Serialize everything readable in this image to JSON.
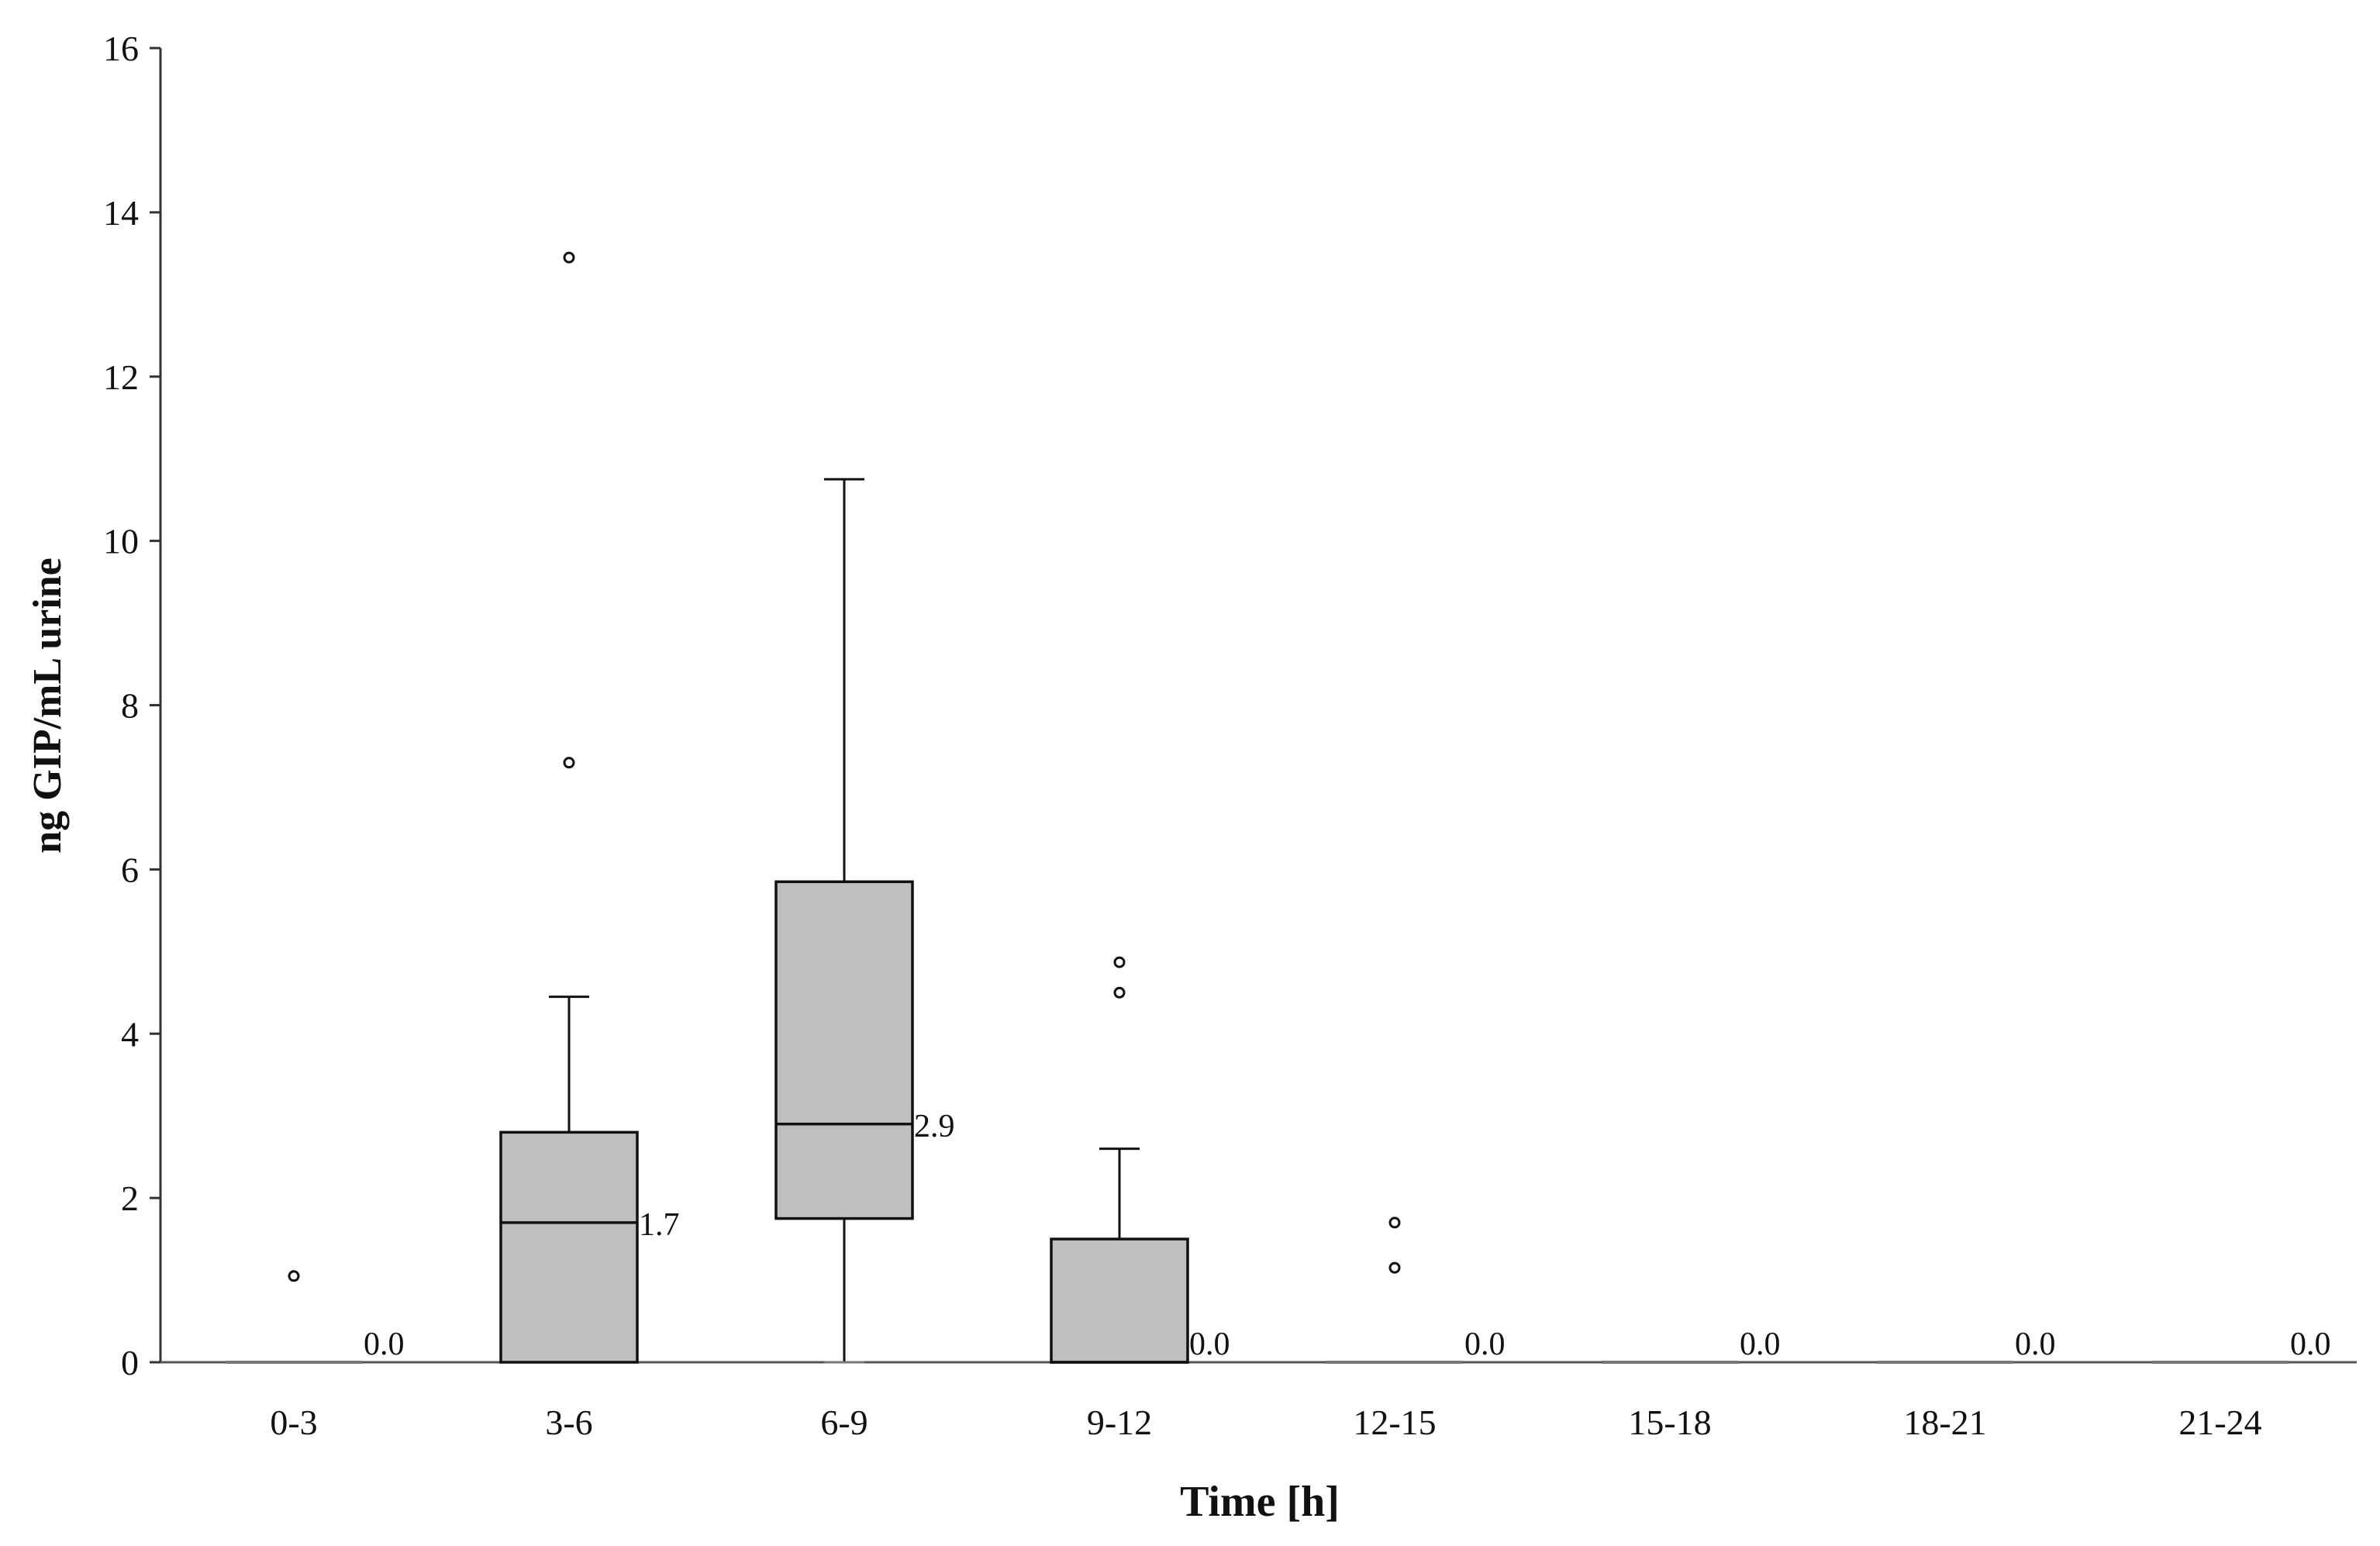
{
  "chart_data": {
    "type": "box",
    "xlabel": "Time [h]",
    "ylabel": "ng GIP/mL urine",
    "ylim": [
      0,
      16
    ],
    "yticks": [
      0,
      2,
      4,
      6,
      8,
      10,
      12,
      14,
      16
    ],
    "categories": [
      "0-3",
      "3-6",
      "6-9",
      "9-12",
      "12-15",
      "15-18",
      "18-21",
      "21-24"
    ],
    "boxes": [
      {
        "category": "0-3",
        "min": 0,
        "q1": 0,
        "median": 0,
        "q3": 0,
        "max": 0,
        "outliers": [
          1.05
        ],
        "median_label": "0.0"
      },
      {
        "category": "3-6",
        "min": 0,
        "q1": 0,
        "median": 1.7,
        "q3": 2.8,
        "max": 4.45,
        "outliers": [
          7.3,
          13.45
        ],
        "median_label": "1.7"
      },
      {
        "category": "6-9",
        "min": 0,
        "q1": 1.75,
        "median": 2.9,
        "q3": 5.85,
        "max": 10.75,
        "outliers": [],
        "median_label": "2.9"
      },
      {
        "category": "9-12",
        "min": 0,
        "q1": 0,
        "median": 0,
        "q3": 1.5,
        "max": 2.6,
        "outliers": [
          4.5,
          4.87
        ],
        "median_label": "0.0"
      },
      {
        "category": "12-15",
        "min": 0,
        "q1": 0,
        "median": 0,
        "q3": 0,
        "max": 0,
        "outliers": [
          1.15,
          1.7
        ],
        "median_label": "0.0"
      },
      {
        "category": "15-18",
        "min": 0,
        "q1": 0,
        "median": 0,
        "q3": 0,
        "max": 0,
        "outliers": [],
        "median_label": "0.0"
      },
      {
        "category": "18-21",
        "min": 0,
        "q1": 0,
        "median": 0,
        "q3": 0,
        "max": 0,
        "outliers": [],
        "median_label": "0.0"
      },
      {
        "category": "21-24",
        "min": 0,
        "q1": 0,
        "median": 0,
        "q3": 0,
        "max": 0,
        "outliers": [],
        "median_label": "0.0"
      }
    ],
    "grid": false,
    "colors": {
      "box_fill": "#bfbfbf",
      "stroke": "#111111",
      "axis": "#555555"
    }
  }
}
